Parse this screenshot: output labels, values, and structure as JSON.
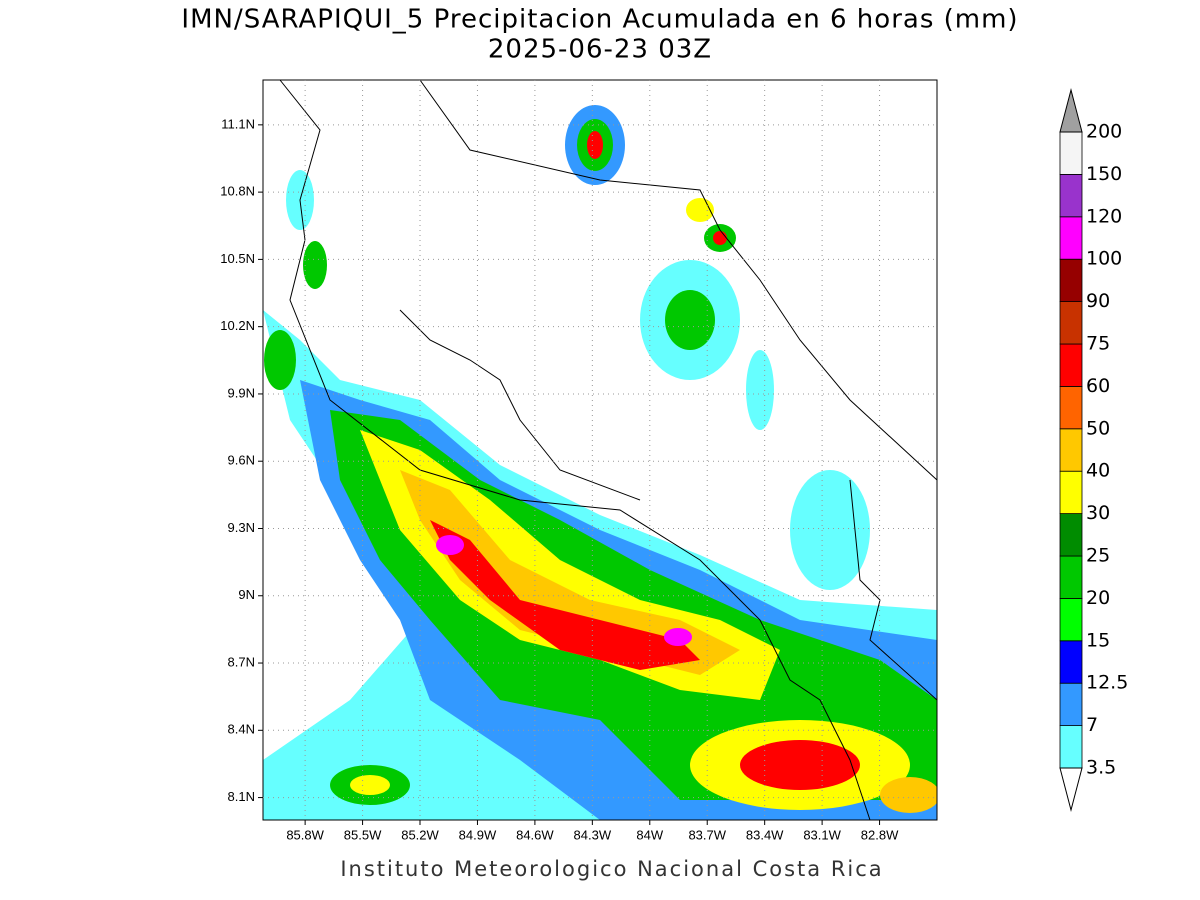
{
  "map": {
    "title": "IMN/SARAPIQUI_5 Precipitacion Acumulada en 6 horas (mm)",
    "subtitle": "2025-06-23 03Z",
    "footer": "Instituto Meteorologico Nacional Costa Rica",
    "grid": true,
    "xlim": [
      -86.02,
      -82.5
    ],
    "ylim": [
      8.0,
      11.3
    ],
    "xticks": [
      {
        "value": -85.8,
        "label": "85.8W"
      },
      {
        "value": -85.5,
        "label": "85.5W"
      },
      {
        "value": -85.2,
        "label": "85.2W"
      },
      {
        "value": -84.9,
        "label": "84.9W"
      },
      {
        "value": -84.6,
        "label": "84.6W"
      },
      {
        "value": -84.3,
        "label": "84.3W"
      },
      {
        "value": -84.0,
        "label": "84W"
      },
      {
        "value": -83.7,
        "label": "83.7W"
      },
      {
        "value": -83.4,
        "label": "83.4W"
      },
      {
        "value": -83.1,
        "label": "83.1W"
      },
      {
        "value": -82.8,
        "label": "82.8W"
      }
    ],
    "yticks": [
      {
        "value": 8.1,
        "label": "8.1N"
      },
      {
        "value": 8.4,
        "label": "8.4N"
      },
      {
        "value": 8.7,
        "label": "8.7N"
      },
      {
        "value": 9.0,
        "label": "9N"
      },
      {
        "value": 9.3,
        "label": "9.3N"
      },
      {
        "value": 9.6,
        "label": "9.6N"
      },
      {
        "value": 9.9,
        "label": "9.9N"
      },
      {
        "value": 10.2,
        "label": "10.2N"
      },
      {
        "value": 10.5,
        "label": "10.5N"
      },
      {
        "value": 10.8,
        "label": "10.8N"
      },
      {
        "value": 11.1,
        "label": "11.1N"
      }
    ]
  },
  "colorbar": {
    "levels": [
      3.5,
      7,
      12.5,
      15,
      20,
      25,
      30,
      40,
      50,
      60,
      75,
      90,
      100,
      120,
      150,
      200
    ],
    "colors": [
      "#66ffff",
      "#3399ff",
      "#0000ff",
      "#00ff00",
      "#00c800",
      "#008c00",
      "#ffff00",
      "#ffc800",
      "#ff6400",
      "#ff0000",
      "#c83200",
      "#960000",
      "#ff00ff",
      "#9933cc",
      "#f5f5f5"
    ],
    "over_color": "#a0a0a0",
    "under_color": "#ffffff"
  }
}
